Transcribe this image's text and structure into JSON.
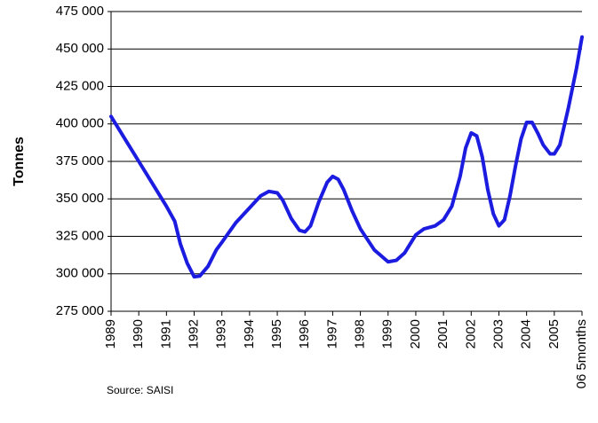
{
  "chart_data": {
    "type": "line",
    "y_label": "Tonnes",
    "source": "Source: SAISI",
    "color": "#1c1ce0",
    "grid": true,
    "x": [
      1989,
      1989.5,
      1990,
      1990.5,
      1991,
      1991.3,
      1991.5,
      1991.75,
      1992,
      1992.2,
      1992.5,
      1992.8,
      1993,
      1993.5,
      1994,
      1994.4,
      1994.7,
      1995,
      1995.2,
      1995.5,
      1995.8,
      1996,
      1996.2,
      1996.5,
      1996.8,
      1997,
      1997.2,
      1997.4,
      1997.7,
      1998,
      1998.5,
      1999,
      1999.3,
      1999.6,
      2000,
      2000.3,
      2000.7,
      2001,
      2001.3,
      2001.6,
      2001.8,
      2002,
      2002.2,
      2002.4,
      2002.6,
      2002.8,
      2003,
      2003.2,
      2003.4,
      2003.6,
      2003.8,
      2004,
      2004.2,
      2004.4,
      2004.6,
      2004.85,
      2005,
      2005.2,
      2005.5,
      2005.8,
      2006
    ],
    "values": [
      405000,
      390000,
      375000,
      360000,
      345000,
      335000,
      320000,
      307000,
      298000,
      298500,
      305000,
      316000,
      321000,
      334000,
      344000,
      352000,
      355000,
      354000,
      349000,
      337000,
      329000,
      328000,
      332000,
      348000,
      361000,
      365000,
      363000,
      356000,
      342000,
      330000,
      316000,
      308000,
      309000,
      314000,
      326000,
      330000,
      332000,
      336000,
      345000,
      365000,
      384000,
      394000,
      392000,
      378000,
      356000,
      340000,
      332000,
      336000,
      352000,
      372000,
      390000,
      401000,
      401000,
      394000,
      386000,
      380000,
      380000,
      386000,
      410000,
      437000,
      458000
    ],
    "xlim": [
      1989,
      2006
    ],
    "xticks": [
      1989,
      1990,
      1991,
      1992,
      1993,
      1994,
      1995,
      1996,
      1997,
      1998,
      1999,
      2000,
      2001,
      2002,
      2003,
      2004,
      2005,
      {
        "value": 2006,
        "label": "06 5months"
      }
    ],
    "ylim": [
      275000,
      475000
    ],
    "yticks": [
      {
        "value": 275000,
        "label": "275 000"
      },
      {
        "value": 300000,
        "label": "300 000"
      },
      {
        "value": 325000,
        "label": "325 000"
      },
      {
        "value": 350000,
        "label": "350 000"
      },
      {
        "value": 375000,
        "label": "375 000"
      },
      {
        "value": 400000,
        "label": "400 000"
      },
      {
        "value": 425000,
        "label": "425 000"
      },
      {
        "value": 450000,
        "label": "450 000"
      },
      {
        "value": 475000,
        "label": "475 000"
      }
    ]
  }
}
